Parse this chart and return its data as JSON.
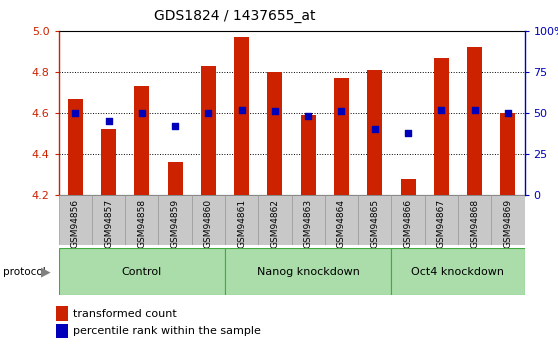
{
  "title": "GDS1824 / 1437655_at",
  "samples": [
    "GSM94856",
    "GSM94857",
    "GSM94858",
    "GSM94859",
    "GSM94860",
    "GSM94861",
    "GSM94862",
    "GSM94863",
    "GSM94864",
    "GSM94865",
    "GSM94866",
    "GSM94867",
    "GSM94868",
    "GSM94869"
  ],
  "transformed_count": [
    4.67,
    4.52,
    4.73,
    4.36,
    4.83,
    4.97,
    4.8,
    4.59,
    4.77,
    4.81,
    4.28,
    4.87,
    4.92,
    4.6
  ],
  "percentile_rank": [
    50,
    45,
    50,
    42,
    50,
    52,
    51,
    48,
    51,
    40,
    38,
    52,
    52,
    50
  ],
  "ylim": [
    4.2,
    5.0
  ],
  "y2lim": [
    0,
    100
  ],
  "yticks": [
    4.2,
    4.4,
    4.6,
    4.8,
    5.0
  ],
  "y2ticks": [
    0,
    25,
    50,
    75,
    100
  ],
  "bar_color": "#CC2200",
  "dot_color": "#0000BB",
  "left_axis_color": "#CC2200",
  "right_axis_color": "#0000BB",
  "plot_bg": "#FFFFFF",
  "tick_label_bg": "#C8C8C8",
  "groups": [
    {
      "label": "Control",
      "start": 0,
      "end": 4
    },
    {
      "label": "Nanog knockdown",
      "start": 5,
      "end": 9
    },
    {
      "label": "Oct4 knockdown",
      "start": 10,
      "end": 13
    }
  ],
  "group_fill": "#AADDAA",
  "group_edge": "#44AA44",
  "legend_items": [
    {
      "label": "transformed count",
      "color": "#CC2200"
    },
    {
      "label": "percentile rank within the sample",
      "color": "#0000BB"
    }
  ]
}
